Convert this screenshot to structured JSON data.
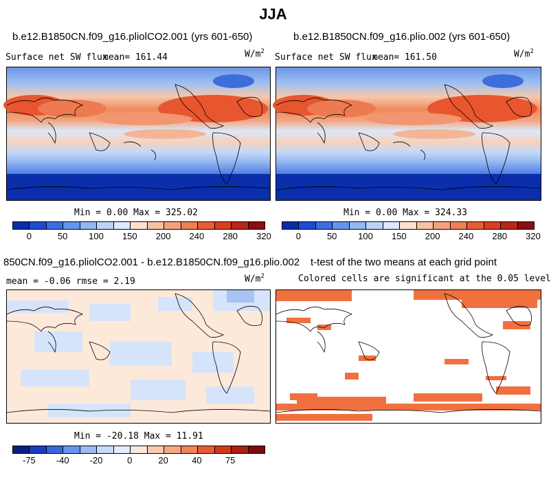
{
  "figure": {
    "title": "JJA"
  },
  "panels": [
    {
      "case": "b.e12.B1850CN.f09_g16.pliolCO2.001 (yrs 601-650)",
      "variable": "Surface net SW flux",
      "stat": "mean= 161.44",
      "unit": "W/m",
      "unit_exp": "2",
      "minmax": "Min =    0.00 Max = 325.02"
    },
    {
      "case": "b.e12.B1850CN.f09_g16.plio.002 (yrs 601-650)",
      "variable": "Surface net SW flux",
      "stat": "mean= 161.50",
      "unit": "W/m",
      "unit_exp": "2",
      "minmax": "Min =    0.00 Max = 324.33"
    },
    {
      "case": "850CN.f09_g16.pliolCO2.001 - b.e12.B1850CN.f09_g16.plio.002",
      "stat": "mean =  -0.06     rmse =    2.19",
      "unit": "W/m",
      "unit_exp": "2",
      "minmax": "Min = -20.18 Max =  11.91"
    },
    {
      "case": "t-test of the two means at each grid point",
      "stat": "Colored cells are significant at the 0.05 level"
    }
  ],
  "colorbars": {
    "absolute": {
      "ticks": [
        "0",
        "50",
        "100",
        "150",
        "200",
        "240",
        "280",
        "320"
      ],
      "colors": [
        "#0a2ca8",
        "#1e4ccf",
        "#3d6ee0",
        "#6495ed",
        "#93b8f2",
        "#bcd4f7",
        "#dce9fb",
        "#fbe0cf",
        "#f7c1a4",
        "#f3a07c",
        "#ef7f57",
        "#e85c36",
        "#d83e22",
        "#b8261a",
        "#8b0f0f"
      ]
    },
    "difference": {
      "ticks": [
        "-75",
        "-40",
        "-20",
        "0",
        "20",
        "40",
        "75"
      ],
      "colors": [
        "#0a1f80",
        "#1a3dbf",
        "#3a66db",
        "#6b93ec",
        "#9dbaf3",
        "#c8dcf8",
        "#e2eefc",
        "#fbe8d9",
        "#f8cbb0",
        "#f4a884",
        "#ef8459",
        "#e65c33",
        "#cf3a1c",
        "#a91f14",
        "#7a0b0b"
      ]
    }
  }
}
